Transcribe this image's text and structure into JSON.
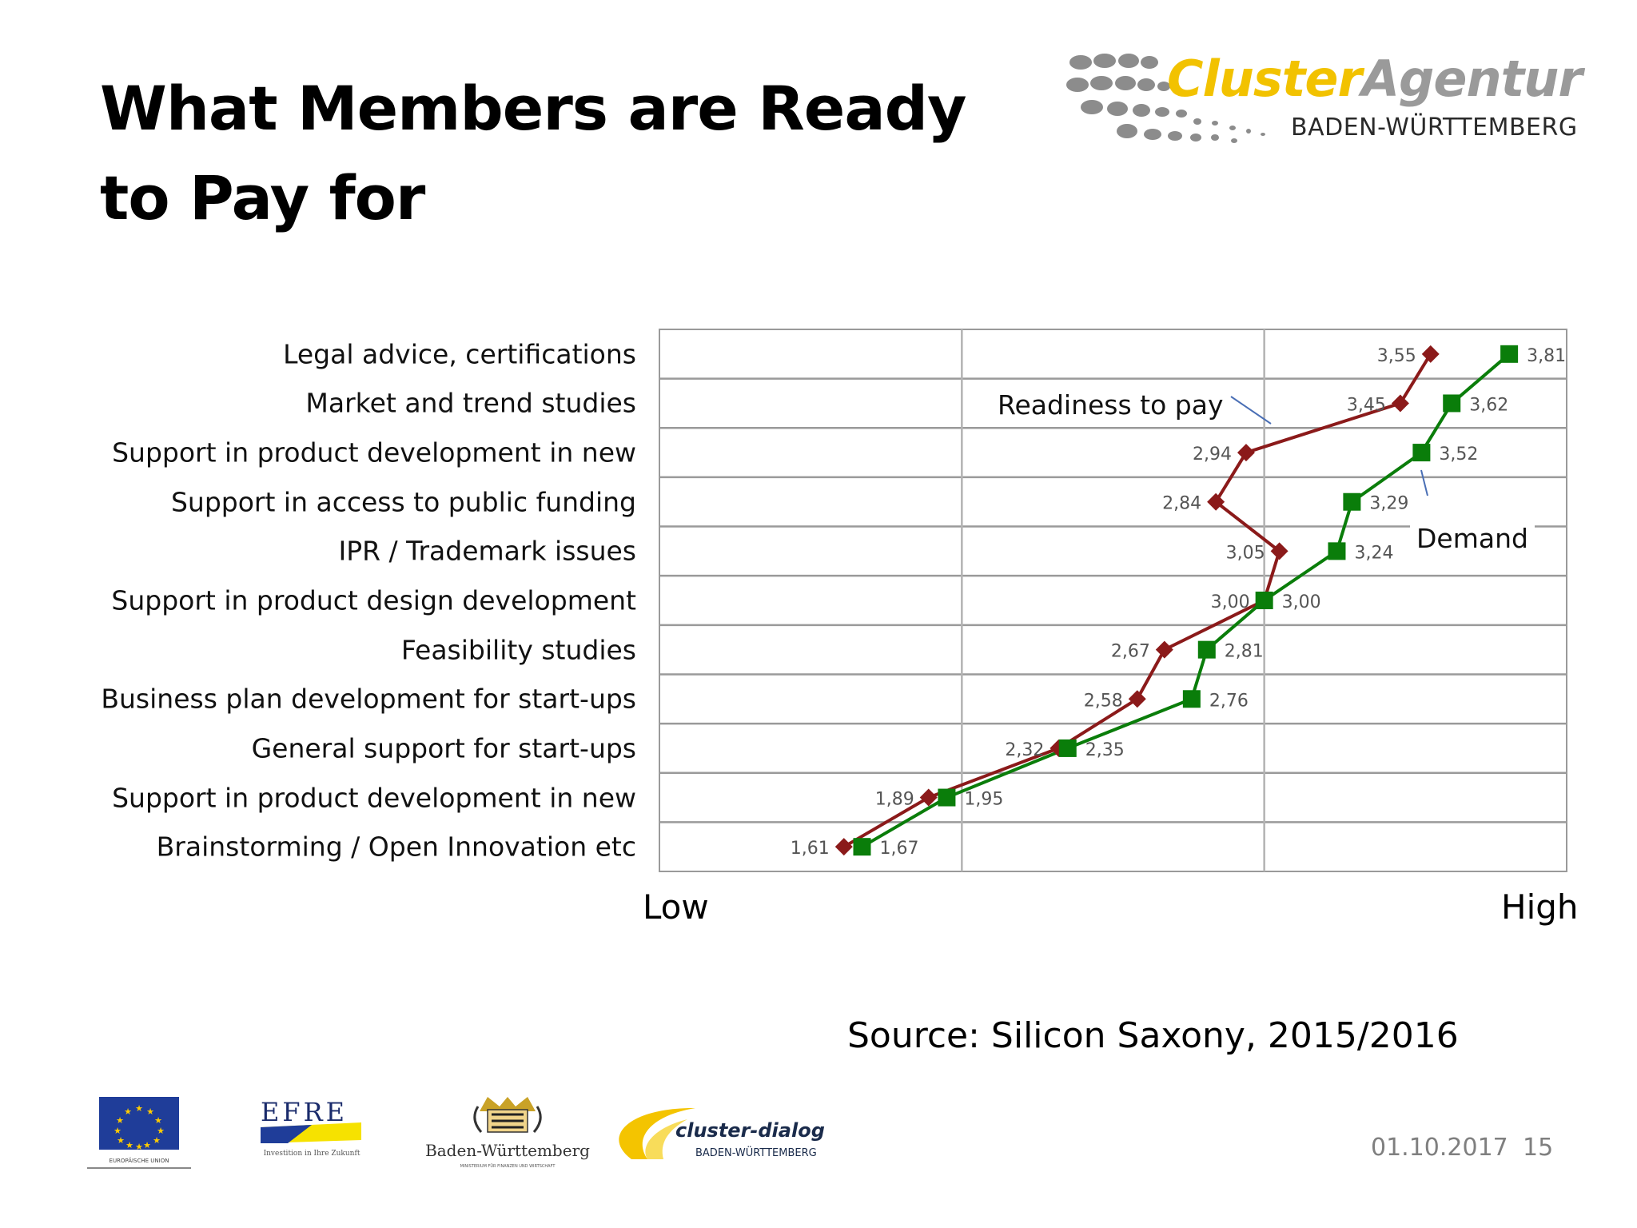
{
  "slide": {
    "title": "What Members are Ready to Pay for",
    "source": "Source: Silicon Saxony, 2015/2016",
    "date": "01.10.2017",
    "page_number": "15"
  },
  "brand": {
    "name_part1": "Cluster",
    "name_part2": "Agentur",
    "subtitle": "BADEN-WÜRTTEMBERG"
  },
  "footer_logos": {
    "efre": "EFRE",
    "efre_sub": "Investition in Ihre Zukunft",
    "bw": "Baden-Württemberg",
    "bw_sub": "MINISTERIUM FÜR FINANZEN UND WIRTSCHAFT",
    "cluster_dialog": "cluster-dialog",
    "cluster_dialog_sub": "BADEN-WÜRTTEMBERG",
    "eu_sub": "EUROPÄISCHE UNION"
  },
  "chart_data": {
    "type": "line",
    "categories": [
      "Legal advice, certifications",
      "Market and trend studies",
      "Support in product development in new",
      "Support in access to public funding",
      "IPR / Trademark issues",
      "Support in product design development",
      "Feasibility studies",
      "Business plan development for start-ups",
      "General support for start-ups",
      "Support in product development in new",
      "Brainstorming / Open Innovation etc"
    ],
    "series": [
      {
        "name": "Readiness to pay",
        "color": "#8b1a1a",
        "marker": "diamond",
        "values": [
          3.55,
          3.45,
          2.94,
          2.84,
          3.05,
          3.0,
          2.67,
          2.58,
          2.32,
          1.89,
          1.61
        ],
        "labels": [
          "3,55",
          "3,45",
          "2,94",
          "2,84",
          "3,05",
          "3,00",
          "2,67",
          "2,58",
          "2,32",
          "1,89",
          "1,61"
        ]
      },
      {
        "name": "Demand",
        "color": "#0a7d0a",
        "marker": "square",
        "values": [
          3.81,
          3.62,
          3.52,
          3.29,
          3.24,
          3.0,
          2.81,
          2.76,
          2.35,
          1.95,
          1.67
        ],
        "labels": [
          "3,81",
          "3,62",
          "3,52",
          "3,29",
          "3,24",
          "3,00",
          "2,81",
          "2,76",
          "2,35",
          "1,95",
          "1,67"
        ]
      }
    ],
    "x_axis": {
      "low_label": "Low",
      "high_label": "High",
      "range": [
        1,
        4
      ]
    },
    "grid": true
  }
}
